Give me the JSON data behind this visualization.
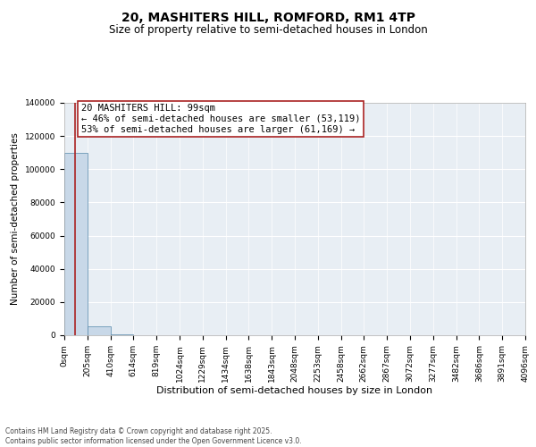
{
  "title": "20, MASHITERS HILL, ROMFORD, RM1 4TP",
  "subtitle": "Size of property relative to semi-detached houses in London",
  "xlabel": "Distribution of semi-detached houses by size in London",
  "ylabel": "Number of semi-detached properties",
  "property_size": 99,
  "pct_smaller": 46,
  "pct_larger": 53,
  "count_smaller": 53119,
  "count_larger": 61169,
  "annotation_line1": "20 MASHITERS HILL: 99sqm",
  "annotation_line2": "← 46% of semi-detached houses are smaller (53,119)",
  "annotation_line3": "53% of semi-detached houses are larger (61,169) →",
  "bar_edges": [
    0,
    205,
    410,
    614,
    819,
    1024,
    1229,
    1434,
    1638,
    1843,
    2048,
    2253,
    2458,
    2662,
    2867,
    3072,
    3277,
    3482,
    3686,
    3891,
    4096
  ],
  "bar_heights": [
    110000,
    5500,
    800,
    200,
    80,
    40,
    20,
    15,
    10,
    8,
    5,
    5,
    3,
    3,
    2,
    2,
    1,
    1,
    1,
    1
  ],
  "bar_color": "#c8d8e8",
  "bar_edge_color": "#5588aa",
  "vline_color": "#aa2222",
  "vline_x": 99,
  "ylim": [
    0,
    140000
  ],
  "yticks": [
    0,
    20000,
    40000,
    60000,
    80000,
    100000,
    120000,
    140000
  ],
  "background_color": "#e8eef4",
  "footer_text": "Contains HM Land Registry data © Crown copyright and database right 2025.\nContains public sector information licensed under the Open Government Licence v3.0.",
  "title_fontsize": 10,
  "subtitle_fontsize": 8.5,
  "tick_fontsize": 6.5,
  "xlabel_fontsize": 8,
  "ylabel_fontsize": 7.5,
  "annotation_fontsize": 7.5,
  "footer_fontsize": 5.5
}
